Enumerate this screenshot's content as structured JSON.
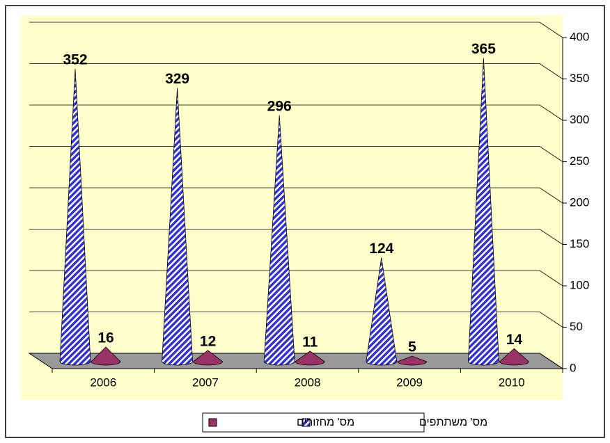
{
  "chart_data": {
    "type": "cone3d",
    "categories": [
      "2006",
      "2007",
      "2008",
      "2009",
      "2010"
    ],
    "series": [
      {
        "name": "מס' משתתפים",
        "color": "#3333cc",
        "values": [
          352,
          329,
          296,
          124,
          365
        ]
      },
      {
        "name": "מס' מחזורים",
        "color": "#993366",
        "values": [
          16,
          12,
          11,
          5,
          14
        ]
      }
    ],
    "ylim": [
      0,
      400
    ],
    "yticks": [
      0,
      50,
      100,
      150,
      200,
      250,
      300,
      350,
      400
    ],
    "grid": true
  }
}
